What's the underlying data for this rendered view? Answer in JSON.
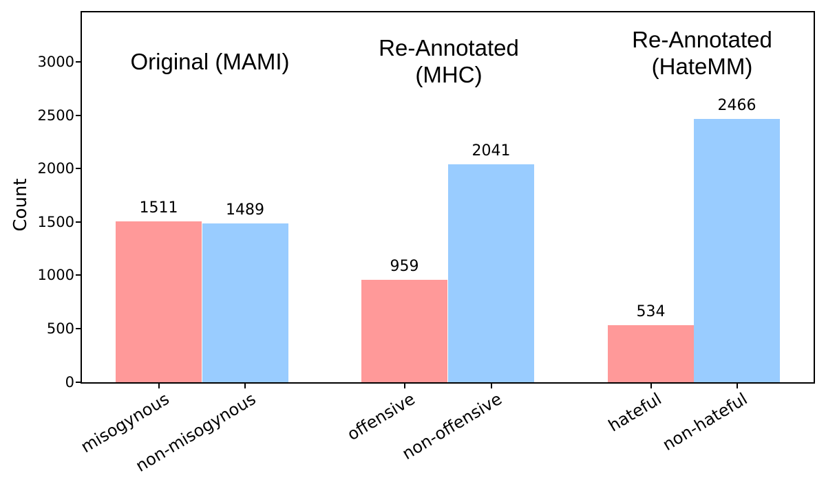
{
  "figure": {
    "background": "#ffffff",
    "axis_color": "#000000"
  },
  "chart_data": {
    "type": "bar",
    "title": "",
    "xlabel": "",
    "ylabel": "Count",
    "ylim": [
      0,
      3470
    ],
    "yticks": [
      0,
      500,
      1000,
      1500,
      2000,
      2500,
      3000
    ],
    "grid": false,
    "legend": null,
    "bar_colors": {
      "left_class": "#FF9999",
      "right_class": "#99CCFF"
    },
    "categories": [
      "misogynous",
      "non-misogynous",
      "offensive",
      "non-offensive",
      "hateful",
      "non-hateful"
    ],
    "values": [
      1511,
      1489,
      959,
      2041,
      534,
      2466
    ],
    "groups": [
      {
        "title": "Original (MAMI)",
        "title_lines": [
          "Original (MAMI)"
        ],
        "bars": [
          {
            "category": "misogynous",
            "value": 1511,
            "color": "#FF9999"
          },
          {
            "category": "non-misogynous",
            "value": 1489,
            "color": "#99CCFF"
          }
        ]
      },
      {
        "title": "Re-Annotated (MHC)",
        "title_lines": [
          "Re-Annotated",
          "(MHC)"
        ],
        "bars": [
          {
            "category": "offensive",
            "value": 959,
            "color": "#FF9999"
          },
          {
            "category": "non-offensive",
            "value": 2041,
            "color": "#99CCFF"
          }
        ]
      },
      {
        "title": "Re-Annotated (HateMM)",
        "title_lines": [
          "Re-Annotated",
          "(HateMM)"
        ],
        "bars": [
          {
            "category": "hateful",
            "value": 534,
            "color": "#FF9999"
          },
          {
            "category": "non-hateful",
            "value": 2466,
            "color": "#99CCFF"
          }
        ]
      }
    ]
  }
}
